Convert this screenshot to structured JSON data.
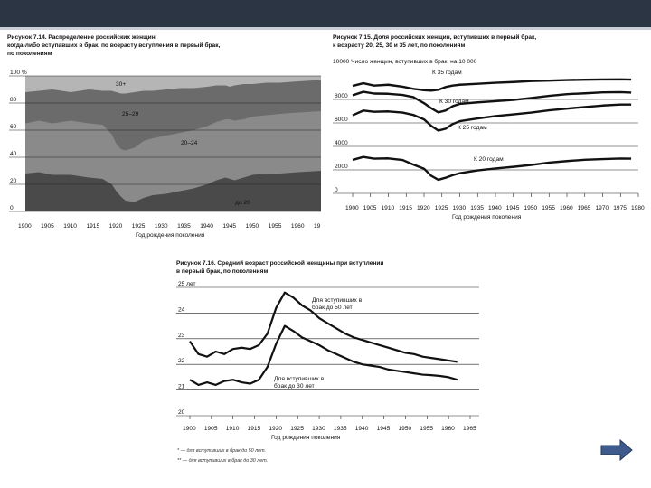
{
  "slide": {
    "accent_color": "#2b3544",
    "next_button": {
      "icon": "right-arrow-icon",
      "color": "#3f5a8c"
    }
  },
  "chart_data": [
    {
      "id": "fig-7-14",
      "type": "area",
      "title": "Рисунок 7.14. Распределение российских женщин,\nкогда-либо вступавших в брак, по возрасту вступления в первый брак,\nпо поколениям",
      "xlabel": "Год рождения поколения",
      "x_ticks": [
        "1900",
        "1905",
        "1910",
        "1915",
        "1920",
        "1925",
        "1930",
        "1935",
        "1940",
        "1945",
        "1950",
        "1955",
        "1960",
        "19"
      ],
      "y_ticks": [
        "0",
        "20",
        "40",
        "60",
        "80",
        "100 %"
      ],
      "xlim": [
        1900,
        1965
      ],
      "ylim": [
        0,
        100
      ],
      "series_labels": [
        "до 20",
        "20–24",
        "25–29",
        "30+"
      ],
      "colors": [
        "#4a4a4a",
        "#8a8a8a",
        "#6b6b6b",
        "#b5b5b5"
      ],
      "x": [
        1900,
        1903,
        1906,
        1908,
        1910,
        1912,
        1914,
        1917,
        1919,
        1920,
        1921,
        1922,
        1924,
        1926,
        1928,
        1931,
        1934,
        1937,
        1940,
        1942,
        1944,
        1945,
        1946,
        1948,
        1950,
        1953,
        1956,
        1960,
        1965
      ],
      "boundary_under20": [
        28,
        29,
        27,
        27,
        27,
        26,
        25,
        24,
        20,
        15,
        11,
        8,
        7,
        10,
        12,
        13,
        15,
        17,
        20,
        23,
        25,
        24,
        23,
        25,
        27,
        28,
        28,
        29,
        30
      ],
      "boundary_20_24": [
        65,
        67,
        65,
        66,
        67,
        66,
        65,
        64,
        57,
        50,
        46,
        45,
        47,
        52,
        54,
        56,
        58,
        60,
        63,
        66,
        68,
        68,
        67,
        68,
        70,
        71,
        72,
        73,
        74
      ],
      "boundary_25_29": [
        88,
        89,
        90,
        89,
        88,
        89,
        90,
        89,
        89,
        88,
        87,
        87,
        88,
        89,
        89,
        90,
        91,
        91,
        92,
        93,
        93,
        92,
        93,
        94,
        94,
        95,
        95,
        96,
        97
      ]
    },
    {
      "id": "fig-7-15",
      "type": "line",
      "title": "Рисунок 7.15. Доля российских женщин, вступивших в первый брак,\nк возрасту 20, 25, 30 и 35 лет, по поколениям",
      "subtitle": "10000 Число женщин, вступивших в брак, на 10 000",
      "xlabel": "Год рождения поколения",
      "x_ticks": [
        "1900",
        "1905",
        "1910",
        "1915",
        "1920",
        "1925",
        "1930",
        "1935",
        "1940",
        "1945",
        "1950",
        "1955",
        "1960",
        "1965",
        "1970",
        "1975",
        "1980"
      ],
      "y_ticks": [
        "0",
        "2000",
        "4000",
        "6000",
        "8000"
      ],
      "xlim": [
        1900,
        1980
      ],
      "ylim": [
        0,
        10000
      ],
      "x": [
        1900,
        1903,
        1906,
        1910,
        1914,
        1917,
        1920,
        1922,
        1924,
        1926,
        1928,
        1930,
        1935,
        1940,
        1945,
        1950,
        1955,
        1960,
        1965,
        1970,
        1975,
        1978
      ],
      "series": [
        {
          "name": "К 35 годам",
          "values": [
            9150,
            9380,
            9180,
            9250,
            9080,
            8900,
            8780,
            8750,
            8820,
            9050,
            9180,
            9250,
            9330,
            9420,
            9480,
            9560,
            9600,
            9650,
            9680,
            9700,
            9710,
            9690
          ]
        },
        {
          "name": "К 30 годам",
          "values": [
            8350,
            8650,
            8500,
            8480,
            8380,
            8200,
            7680,
            7250,
            6900,
            7050,
            7420,
            7620,
            7750,
            7850,
            7960,
            8120,
            8300,
            8450,
            8520,
            8600,
            8620,
            8580
          ]
        },
        {
          "name": "К 25 годам",
          "values": [
            6650,
            7050,
            6950,
            6980,
            6880,
            6680,
            6300,
            5750,
            5350,
            5500,
            5900,
            6150,
            6380,
            6580,
            6730,
            6880,
            7070,
            7220,
            7350,
            7480,
            7560,
            7560
          ]
        },
        {
          "name": "К 20 годам",
          "values": [
            2850,
            3100,
            2960,
            2980,
            2840,
            2450,
            2100,
            1500,
            1160,
            1330,
            1550,
            1720,
            1960,
            2120,
            2260,
            2420,
            2620,
            2750,
            2860,
            2920,
            2970,
            2960
          ]
        }
      ]
    },
    {
      "id": "fig-7-16",
      "type": "line",
      "title": "Рисунок 7.16. Средний возраст российской женщины при вступлении\nв первый брак, по поколениям",
      "xlabel": "Год рождения поколения",
      "x_ticks": [
        "1900",
        "1905",
        "1910",
        "1915",
        "1920",
        "1925",
        "1930",
        "1935",
        "1940",
        "1945",
        "1950",
        "1955",
        "1960",
        "1965"
      ],
      "y_ticks": [
        "20",
        "21",
        "22",
        "23",
        "24",
        "25 лет"
      ],
      "xlim": [
        1900,
        1965
      ],
      "ylim": [
        20,
        25
      ],
      "x": [
        1900,
        1902,
        1904,
        1906,
        1908,
        1910,
        1912,
        1914,
        1916,
        1918,
        1920,
        1922,
        1924,
        1926,
        1928,
        1930,
        1932,
        1934,
        1936,
        1938,
        1940,
        1942,
        1944,
        1946,
        1948,
        1950,
        1952,
        1954,
        1956,
        1958,
        1960,
        1962
      ],
      "series": [
        {
          "name": "Для вступивших в брак до 50 лет",
          "values": [
            22.9,
            22.4,
            22.3,
            22.5,
            22.4,
            22.6,
            22.65,
            22.6,
            22.75,
            23.2,
            24.2,
            24.8,
            24.6,
            24.3,
            24.1,
            23.8,
            23.6,
            23.4,
            23.2,
            23.05,
            22.95,
            22.85,
            22.75,
            22.65,
            22.55,
            22.45,
            22.4,
            22.3,
            22.25,
            22.2,
            22.15,
            22.1
          ]
        },
        {
          "name": "Для вступивших в брак до 30 лет",
          "values": [
            21.4,
            21.2,
            21.3,
            21.2,
            21.35,
            21.4,
            21.3,
            21.25,
            21.4,
            21.9,
            22.8,
            23.5,
            23.3,
            23.05,
            22.9,
            22.75,
            22.55,
            22.4,
            22.25,
            22.1,
            22.0,
            21.95,
            21.9,
            21.8,
            21.75,
            21.7,
            21.65,
            21.6,
            21.58,
            21.55,
            21.5,
            21.4
          ]
        }
      ],
      "notes": [
        "* — для вступивших в брак до 50 лет.",
        "** — для вступивших в брак до 30 лет."
      ]
    }
  ]
}
